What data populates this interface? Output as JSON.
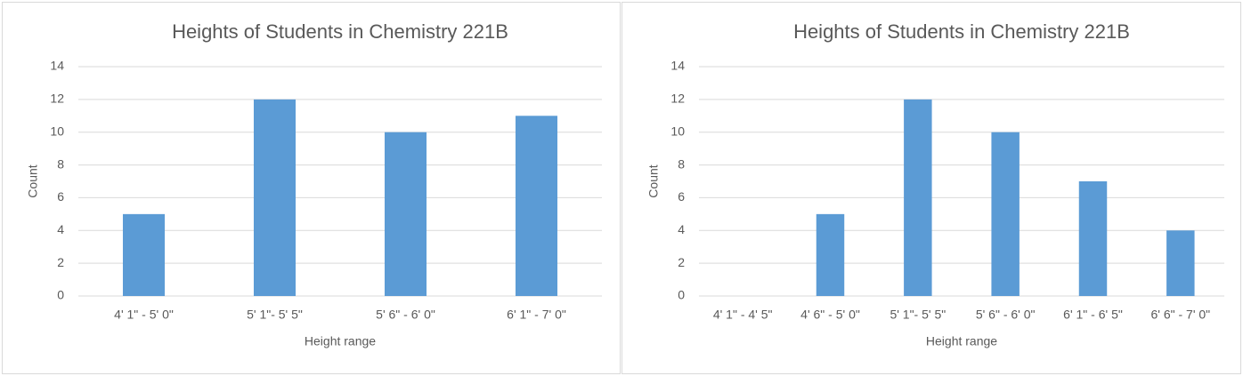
{
  "chart_data": [
    {
      "type": "bar",
      "title": "Heights of Students in Chemistry 221B",
      "x_label": "Height range",
      "y_label": "Count",
      "categories": [
        "4' 1\" - 5' 0\"",
        "5' 1\"- 5' 5\"",
        "5' 6\" - 6' 0\"",
        "6' 1\" - 7' 0\""
      ],
      "values": [
        5,
        12,
        10,
        11
      ],
      "color": "#5b9bd5",
      "ylim": [
        0,
        14
      ],
      "yticks": [
        0,
        2,
        4,
        6,
        8,
        10,
        12,
        14
      ],
      "grid": true
    },
    {
      "type": "bar",
      "title": "Heights of Students in Chemistry 221B",
      "x_label": "Height range",
      "y_label": "Count",
      "categories": [
        "4' 1\" - 4' 5\"",
        "4' 6\" - 5' 0\"",
        "5' 1\"- 5' 5\"",
        "5' 6\" - 6' 0\"",
        "6' 1\" - 6' 5\"",
        "6' 6\" - 7' 0\""
      ],
      "values": [
        0,
        5,
        12,
        10,
        7,
        4
      ],
      "color": "#5b9bd5",
      "ylim": [
        0,
        14
      ],
      "yticks": [
        0,
        2,
        4,
        6,
        8,
        10,
        12,
        14
      ],
      "grid": true
    }
  ]
}
